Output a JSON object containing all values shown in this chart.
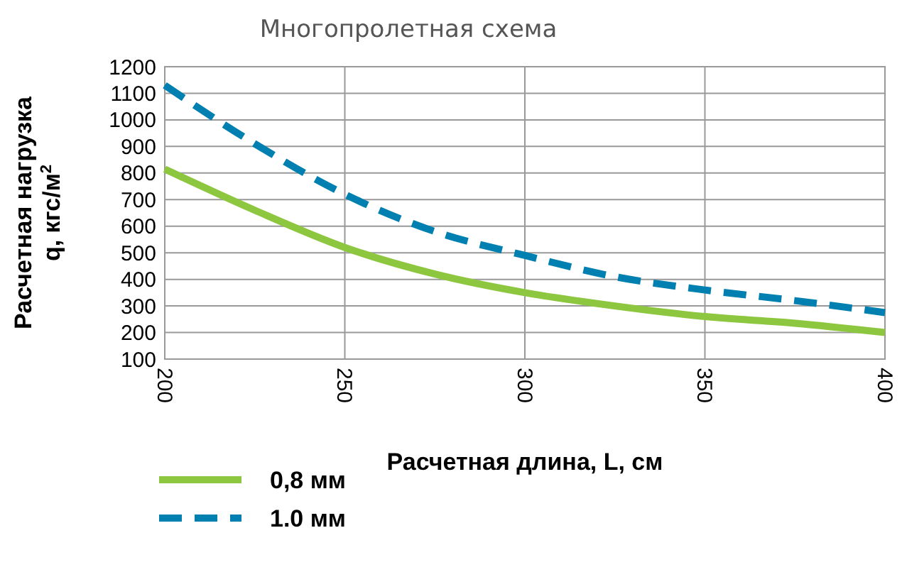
{
  "chart_data": {
    "type": "line",
    "title": "Многопролетная схема",
    "xlabel": "Расчетная длина, L, см",
    "ylabel": "Расчетная нагрузка\nq, кгс/м$^{2}$",
    "x": [
      200,
      225,
      250,
      275,
      300,
      325,
      350,
      375,
      400
    ],
    "series": [
      {
        "name": "0,8 мм",
        "color": "#8dc63f",
        "line_style": "solid",
        "values": [
          815,
          660,
          520,
          420,
          350,
          300,
          260,
          235,
          200
        ]
      },
      {
        "name": "1.0 мм",
        "color": "#0080b0",
        "line_style": "dashed",
        "values": [
          1130,
          910,
          720,
          580,
          490,
          410,
          360,
          320,
          275
        ]
      }
    ],
    "xlim": [
      200,
      400
    ],
    "xticks": [
      200,
      250,
      300,
      350,
      400
    ],
    "ylim": [
      100,
      1200
    ],
    "yticks": [
      100,
      200,
      300,
      400,
      500,
      600,
      700,
      800,
      900,
      1000,
      1100,
      1200
    ],
    "grid": true,
    "legend": "bottom left"
  }
}
